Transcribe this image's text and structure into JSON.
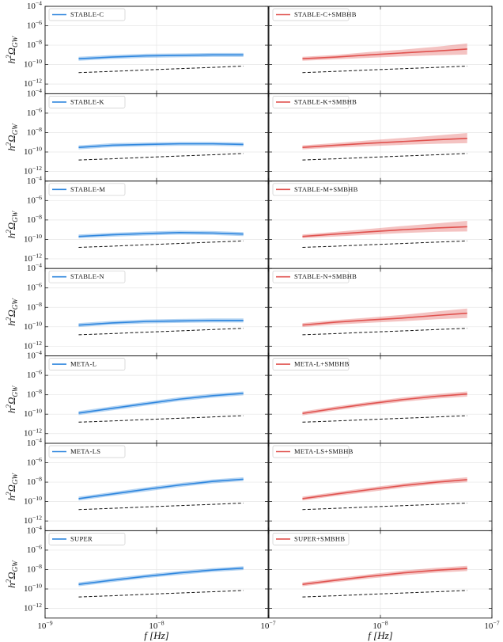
{
  "chart_data": [
    {
      "type": "line",
      "x": [
        2e-09,
        4e-09,
        8e-09,
        1.6e-08,
        3.2e-08,
        6e-08
      ],
      "xlim": [
        1e-09,
        1e-07
      ],
      "ylim": [
        1e-13,
        0.0001
      ],
      "log": true,
      "grid": true,
      "ylabel": "h^{2}Ω_{GW}",
      "xticks": [
        1e-09,
        1e-08,
        1e-07
      ],
      "yticks": [
        {
          "value": 1e-12,
          "label": "10^{−12}"
        },
        {
          "value": 1e-10,
          "label": "10^{−10}"
        },
        {
          "value": 1e-08,
          "label": "10^{−8}"
        },
        {
          "value": 1e-06,
          "label": "10^{−6}"
        },
        {
          "value": 0.0001,
          "label": "10^{−4}"
        }
      ],
      "series": [
        {
          "name": "STABLE-C",
          "color": "#2e86de",
          "values": [
            4e-10,
            6e-10,
            8e-10,
            9e-10,
            1e-09,
            1e-09
          ],
          "low": [
            2.5e-10,
            3.8e-10,
            5e-10,
            5.6e-10,
            6.2e-10,
            6.2e-10
          ],
          "high": [
            6.4e-10,
            9.6e-10,
            1.3e-09,
            1.4e-09,
            1.6e-09,
            1.6e-09
          ]
        }
      ],
      "reference": {
        "values": [
          1.5e-11,
          2e-11,
          2.8e-11,
          3.8e-11,
          5.2e-11,
          7e-11
        ]
      }
    },
    {
      "type": "line",
      "x": [
        2e-09,
        4e-09,
        8e-09,
        1.6e-08,
        3.2e-08,
        6e-08
      ],
      "xlim": [
        1e-09,
        1e-07
      ],
      "ylim": [
        1e-13,
        0.0001
      ],
      "log": true,
      "grid": true,
      "xticks": [
        1e-09,
        1e-08,
        1e-07
      ],
      "yticks": [
        1e-12,
        1e-10,
        1e-08,
        1e-06,
        0.0001
      ],
      "series": [
        {
          "name": "STABLE-C+SMBHB",
          "color": "#e0524f",
          "values": [
            4e-10,
            6e-10,
            1e-09,
            1.6e-09,
            2.5e-09,
            4e-09
          ],
          "low": [
            2.5e-10,
            3.5e-10,
            5e-10,
            7e-10,
            9e-10,
            1.1e-09
          ],
          "high": [
            6.4e-10,
            1e-09,
            2e-09,
            3.5e-09,
            7e-09,
            1.5e-08
          ]
        }
      ],
      "reference": {
        "values": [
          1.5e-11,
          2e-11,
          2.8e-11,
          3.8e-11,
          5.2e-11,
          7e-11
        ]
      }
    },
    {
      "type": "line",
      "x": [
        2e-09,
        4e-09,
        8e-09,
        1.6e-08,
        3.2e-08,
        6e-08
      ],
      "xlim": [
        1e-09,
        1e-07
      ],
      "ylim": [
        1e-13,
        0.0001
      ],
      "log": true,
      "grid": true,
      "ylabel": "h^{2}Ω_{GW}",
      "xticks": [
        1e-09,
        1e-08,
        1e-07
      ],
      "yticks": [
        {
          "value": 1e-12,
          "label": "10^{−12}"
        },
        {
          "value": 1e-10,
          "label": "10^{−10}"
        },
        {
          "value": 1e-08,
          "label": "10^{−8}"
        },
        {
          "value": 1e-06,
          "label": "10^{−6}"
        },
        {
          "value": 0.0001,
          "label": "10^{−4}"
        }
      ],
      "series": [
        {
          "name": "STABLE-K",
          "color": "#2e86de",
          "values": [
            3e-10,
            5e-10,
            6e-10,
            7e-10,
            7e-10,
            6e-10
          ],
          "low": [
            1.9e-10,
            3.1e-10,
            3.8e-10,
            4.4e-10,
            4.4e-10,
            3.8e-10
          ],
          "high": [
            4.8e-10,
            8e-10,
            9.6e-10,
            1.1e-09,
            1.1e-09,
            9.6e-10
          ]
        }
      ],
      "reference": {
        "values": [
          1.5e-11,
          2e-11,
          2.8e-11,
          3.8e-11,
          5.2e-11,
          7e-11
        ]
      }
    },
    {
      "type": "line",
      "x": [
        2e-09,
        4e-09,
        8e-09,
        1.6e-08,
        3.2e-08,
        6e-08
      ],
      "xlim": [
        1e-09,
        1e-07
      ],
      "ylim": [
        1e-13,
        0.0001
      ],
      "log": true,
      "grid": true,
      "xticks": [
        1e-09,
        1e-08,
        1e-07
      ],
      "yticks": [
        1e-12,
        1e-10,
        1e-08,
        1e-06,
        0.0001
      ],
      "series": [
        {
          "name": "STABLE-K+SMBHB",
          "color": "#e0524f",
          "values": [
            3e-10,
            5e-10,
            8e-10,
            1.2e-09,
            1.8e-09,
            2.5e-09
          ],
          "low": [
            1.9e-10,
            2.9e-10,
            4e-10,
            5.5e-10,
            7e-10,
            8e-10
          ],
          "high": [
            4.8e-10,
            8.5e-10,
            1.6e-09,
            2.8e-09,
            5e-09,
            9e-09
          ]
        }
      ],
      "reference": {
        "values": [
          1.5e-11,
          2e-11,
          2.8e-11,
          3.8e-11,
          5.2e-11,
          7e-11
        ]
      }
    },
    {
      "type": "line",
      "x": [
        2e-09,
        4e-09,
        8e-09,
        1.6e-08,
        3.2e-08,
        6e-08
      ],
      "xlim": [
        1e-09,
        1e-07
      ],
      "ylim": [
        1e-13,
        0.0001
      ],
      "log": true,
      "grid": true,
      "ylabel": "h^{2}Ω_{GW}",
      "xticks": [
        1e-09,
        1e-08,
        1e-07
      ],
      "yticks": [
        {
          "value": 1e-12,
          "label": "10^{−12}"
        },
        {
          "value": 1e-10,
          "label": "10^{−10}"
        },
        {
          "value": 1e-08,
          "label": "10^{−8}"
        },
        {
          "value": 1e-06,
          "label": "10^{−6}"
        },
        {
          "value": 0.0001,
          "label": "10^{−4}"
        }
      ],
      "series": [
        {
          "name": "STABLE-M",
          "color": "#2e86de",
          "values": [
            2e-10,
            3e-10,
            4e-10,
            5e-10,
            4.5e-10,
            3.5e-10
          ],
          "low": [
            1.3e-10,
            1.9e-10,
            2.5e-10,
            3.1e-10,
            2.8e-10,
            2.2e-10
          ],
          "high": [
            3.2e-10,
            4.8e-10,
            6.4e-10,
            8e-10,
            7.2e-10,
            5.6e-10
          ]
        }
      ],
      "reference": {
        "values": [
          1.5e-11,
          2e-11,
          2.8e-11,
          3.8e-11,
          5.2e-11,
          7e-11
        ]
      }
    },
    {
      "type": "line",
      "x": [
        2e-09,
        4e-09,
        8e-09,
        1.6e-08,
        3.2e-08,
        6e-08
      ],
      "xlim": [
        1e-09,
        1e-07
      ],
      "ylim": [
        1e-13,
        0.0001
      ],
      "log": true,
      "grid": true,
      "xticks": [
        1e-09,
        1e-08,
        1e-07
      ],
      "yticks": [
        1e-12,
        1e-10,
        1e-08,
        1e-06,
        0.0001
      ],
      "series": [
        {
          "name": "STABLE-M+SMBHB",
          "color": "#e0524f",
          "values": [
            2e-10,
            3.5e-10,
            6e-10,
            1e-09,
            1.5e-09,
            2e-09
          ],
          "low": [
            1.3e-10,
            2e-10,
            3e-10,
            4.5e-10,
            6e-10,
            6.5e-10
          ],
          "high": [
            3.2e-10,
            6e-10,
            1.2e-09,
            2.4e-09,
            4.5e-09,
            8e-09
          ]
        }
      ],
      "reference": {
        "values": [
          1.5e-11,
          2e-11,
          2.8e-11,
          3.8e-11,
          5.2e-11,
          7e-11
        ]
      }
    },
    {
      "type": "line",
      "x": [
        2e-09,
        4e-09,
        8e-09,
        1.6e-08,
        3.2e-08,
        6e-08
      ],
      "xlim": [
        1e-09,
        1e-07
      ],
      "ylim": [
        1e-13,
        0.0001
      ],
      "log": true,
      "grid": true,
      "ylabel": "h^{2}Ω_{GW}",
      "xticks": [
        1e-09,
        1e-08,
        1e-07
      ],
      "yticks": [
        {
          "value": 1e-12,
          "label": "10^{−12}"
        },
        {
          "value": 1e-10,
          "label": "10^{−10}"
        },
        {
          "value": 1e-08,
          "label": "10^{−8}"
        },
        {
          "value": 1e-06,
          "label": "10^{−6}"
        },
        {
          "value": 0.0001,
          "label": "10^{−4}"
        }
      ],
      "series": [
        {
          "name": "STABLE-N",
          "color": "#2e86de",
          "values": [
            1.5e-10,
            2.5e-10,
            3.5e-10,
            4e-10,
            4.5e-10,
            4.5e-10
          ],
          "low": [
            9.4e-11,
            1.6e-10,
            2.2e-10,
            2.5e-10,
            2.8e-10,
            2.8e-10
          ],
          "high": [
            2.4e-10,
            4e-10,
            5.6e-10,
            6.4e-10,
            7.2e-10,
            7.2e-10
          ]
        }
      ],
      "reference": {
        "values": [
          1.5e-11,
          2e-11,
          2.8e-11,
          3.8e-11,
          5.2e-11,
          7e-11
        ]
      }
    },
    {
      "type": "line",
      "x": [
        2e-09,
        4e-09,
        8e-09,
        1.6e-08,
        3.2e-08,
        6e-08
      ],
      "xlim": [
        1e-09,
        1e-07
      ],
      "ylim": [
        1e-13,
        0.0001
      ],
      "log": true,
      "grid": true,
      "xticks": [
        1e-09,
        1e-08,
        1e-07
      ],
      "yticks": [
        1e-12,
        1e-10,
        1e-08,
        1e-06,
        0.0001
      ],
      "series": [
        {
          "name": "STABLE-N+SMBHB",
          "color": "#e0524f",
          "values": [
            1.5e-10,
            3e-10,
            5e-10,
            8e-10,
            1.5e-09,
            2.5e-09
          ],
          "low": [
            9.4e-11,
            1.7e-10,
            2.6e-10,
            3.8e-10,
            6e-10,
            8e-10
          ],
          "high": [
            2.4e-10,
            5e-10,
            9e-10,
            1.7e-09,
            3.8e-09,
            7.5e-09
          ]
        }
      ],
      "reference": {
        "values": [
          1.5e-11,
          2e-11,
          2.8e-11,
          3.8e-11,
          5.2e-11,
          7e-11
        ]
      }
    },
    {
      "type": "line",
      "x": [
        2e-09,
        4e-09,
        8e-09,
        1.6e-08,
        3.2e-08,
        6e-08
      ],
      "xlim": [
        1e-09,
        1e-07
      ],
      "ylim": [
        1e-13,
        0.0001
      ],
      "log": true,
      "grid": true,
      "ylabel": "h^{2}Ω_{GW}",
      "xticks": [
        1e-09,
        1e-08,
        1e-07
      ],
      "yticks": [
        {
          "value": 1e-12,
          "label": "10^{−12}"
        },
        {
          "value": 1e-10,
          "label": "10^{−10}"
        },
        {
          "value": 1e-08,
          "label": "10^{−8}"
        },
        {
          "value": 1e-06,
          "label": "10^{−6}"
        },
        {
          "value": 0.0001,
          "label": "10^{−4}"
        }
      ],
      "series": [
        {
          "name": "META-L",
          "color": "#2e86de",
          "values": [
            1.3e-10,
            4e-10,
            1.2e-09,
            3.5e-09,
            8e-09,
            1.4e-08
          ],
          "low": [
            8e-11,
            2.5e-10,
            7.5e-10,
            2.2e-09,
            5e-09,
            8.8e-09
          ],
          "high": [
            2.1e-10,
            6.4e-10,
            1.9e-09,
            5.6e-09,
            1.3e-08,
            2.2e-08
          ]
        }
      ],
      "reference": {
        "values": [
          1.5e-11,
          2e-11,
          2.8e-11,
          3.8e-11,
          5.2e-11,
          7e-11
        ]
      }
    },
    {
      "type": "line",
      "x": [
        2e-09,
        4e-09,
        8e-09,
        1.6e-08,
        3.2e-08,
        6e-08
      ],
      "xlim": [
        1e-09,
        1e-07
      ],
      "ylim": [
        1e-13,
        0.0001
      ],
      "log": true,
      "grid": true,
      "xticks": [
        1e-09,
        1e-08,
        1e-07
      ],
      "yticks": [
        1e-12,
        1e-10,
        1e-08,
        1e-06,
        0.0001
      ],
      "series": [
        {
          "name": "META-L+SMBHB",
          "color": "#e0524f",
          "values": [
            1.2e-10,
            4e-10,
            1.2e-09,
            3.2e-09,
            7e-09,
            1.2e-08
          ],
          "low": [
            7.5e-11,
            2.5e-10,
            7.5e-10,
            1.9e-09,
            4e-09,
            6.5e-09
          ],
          "high": [
            1.9e-10,
            6.4e-10,
            1.9e-09,
            5.3e-09,
            1.2e-08,
            2.2e-08
          ]
        }
      ],
      "reference": {
        "values": [
          1.5e-11,
          2e-11,
          2.8e-11,
          3.8e-11,
          5.2e-11,
          7e-11
        ]
      }
    },
    {
      "type": "line",
      "x": [
        2e-09,
        4e-09,
        8e-09,
        1.6e-08,
        3.2e-08,
        6e-08
      ],
      "xlim": [
        1e-09,
        1e-07
      ],
      "ylim": [
        1e-13,
        0.0001
      ],
      "log": true,
      "grid": true,
      "ylabel": "h^{2}Ω_{GW}",
      "xticks": [
        1e-09,
        1e-08,
        1e-07
      ],
      "yticks": [
        {
          "value": 1e-12,
          "label": "10^{−12}"
        },
        {
          "value": 1e-10,
          "label": "10^{−10}"
        },
        {
          "value": 1e-08,
          "label": "10^{−8}"
        },
        {
          "value": 1e-06,
          "label": "10^{−6}"
        },
        {
          "value": 0.0001,
          "label": "10^{−4}"
        }
      ],
      "series": [
        {
          "name": "META-LS",
          "color": "#2e86de",
          "values": [
            2e-10,
            6e-10,
            1.8e-09,
            5e-09,
            1.2e-08,
            2e-08
          ],
          "low": [
            1.3e-10,
            3.8e-10,
            1.1e-09,
            3.1e-09,
            7.5e-09,
            1.3e-08
          ],
          "high": [
            3.2e-10,
            9.6e-10,
            2.9e-09,
            8e-09,
            1.9e-08,
            3.2e-08
          ]
        }
      ],
      "reference": {
        "values": [
          1.5e-11,
          2e-11,
          2.8e-11,
          3.8e-11,
          5.2e-11,
          7e-11
        ]
      }
    },
    {
      "type": "line",
      "x": [
        2e-09,
        4e-09,
        8e-09,
        1.6e-08,
        3.2e-08,
        6e-08
      ],
      "xlim": [
        1e-09,
        1e-07
      ],
      "ylim": [
        1e-13,
        0.0001
      ],
      "log": true,
      "grid": true,
      "xticks": [
        1e-09,
        1e-08,
        1e-07
      ],
      "yticks": [
        1e-12,
        1e-10,
        1e-08,
        1e-06,
        0.0001
      ],
      "series": [
        {
          "name": "META-LS+SMBHB",
          "color": "#e0524f",
          "values": [
            2e-10,
            6e-10,
            1.7e-09,
            4.5e-09,
            1e-08,
            1.8e-08
          ],
          "low": [
            1.3e-10,
            3.8e-10,
            1e-09,
            2.7e-09,
            6e-09,
            1e-08
          ],
          "high": [
            3.2e-10,
            9.6e-10,
            2.8e-09,
            7.5e-09,
            1.7e-08,
            3.2e-08
          ]
        }
      ],
      "reference": {
        "values": [
          1.5e-11,
          2e-11,
          2.8e-11,
          3.8e-11,
          5.2e-11,
          7e-11
        ]
      }
    },
    {
      "type": "line",
      "x": [
        2e-09,
        4e-09,
        8e-09,
        1.6e-08,
        3.2e-08,
        6e-08
      ],
      "xlim": [
        1e-09,
        1e-07
      ],
      "ylim": [
        1e-13,
        0.0001
      ],
      "log": true,
      "grid": true,
      "ylabel": "h^{2}Ω_{GW}",
      "xlabel": "f [Hz]",
      "xticks": [
        {
          "value": 1e-09,
          "label": "10^{−9}"
        },
        {
          "value": 1e-08,
          "label": "10^{−8}"
        },
        {
          "value": 1e-07,
          "label": "10^{−7}"
        }
      ],
      "yticks": [
        {
          "value": 1e-12,
          "label": "10^{−12}"
        },
        {
          "value": 1e-10,
          "label": "10^{−10}"
        },
        {
          "value": 1e-08,
          "label": "10^{−8}"
        },
        {
          "value": 1e-06,
          "label": "10^{−6}"
        },
        {
          "value": 0.0001,
          "label": "10^{−4}"
        }
      ],
      "series": [
        {
          "name": "SUPER",
          "color": "#2e86de",
          "values": [
            3e-10,
            8e-10,
            2e-09,
            4.5e-09,
            9e-09,
            1.4e-08
          ],
          "low": [
            1.9e-10,
            5e-10,
            1.3e-09,
            2.8e-09,
            5.6e-09,
            8.8e-09
          ],
          "high": [
            4.8e-10,
            1.3e-09,
            3.2e-09,
            7.2e-09,
            1.4e-08,
            2.2e-08
          ]
        }
      ],
      "reference": {
        "values": [
          1.5e-11,
          2e-11,
          2.8e-11,
          3.8e-11,
          5.2e-11,
          7e-11
        ]
      }
    },
    {
      "type": "line",
      "x": [
        2e-09,
        4e-09,
        8e-09,
        1.6e-08,
        3.2e-08,
        6e-08
      ],
      "xlim": [
        1e-09,
        1e-07
      ],
      "ylim": [
        1e-13,
        0.0001
      ],
      "log": true,
      "grid": true,
      "xlabel": "f [Hz]",
      "xticks": [
        1e-09,
        {
          "value": 1e-08,
          "label": "10^{−8}"
        },
        {
          "value": 1e-07,
          "label": "10^{−7}"
        }
      ],
      "yticks": [
        1e-12,
        1e-10,
        1e-08,
        1e-06,
        0.0001
      ],
      "series": [
        {
          "name": "SUPER+SMBHB",
          "color": "#e0524f",
          "values": [
            3e-10,
            8e-10,
            2e-09,
            4.5e-09,
            8.5e-09,
            1.3e-08
          ],
          "low": [
            1.9e-10,
            5e-10,
            1.2e-09,
            2.6e-09,
            4.8e-09,
            7e-09
          ],
          "high": [
            4.8e-10,
            1.3e-09,
            3.3e-09,
            7.8e-09,
            1.5e-08,
            2.4e-08
          ]
        }
      ],
      "reference": {
        "values": [
          1.5e-11,
          2e-11,
          2.8e-11,
          3.8e-11,
          5.2e-11,
          7e-11
        ]
      }
    }
  ]
}
